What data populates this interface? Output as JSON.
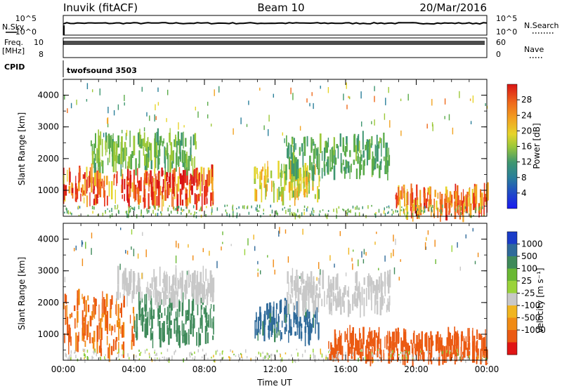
{
  "header": {
    "station": "Inuvik (fitACF)",
    "beam": "Beam 10",
    "date": "20/Mar/2016"
  },
  "chart_data": [
    {
      "type": "line",
      "panel": "nsky-nsearch",
      "left_label": "N.Sky",
      "right_label": "N.Search",
      "left_ticks": [
        "10^5",
        "10^0"
      ],
      "right_ticks": [
        "10^5",
        "10^0"
      ],
      "yscale": "log",
      "ylim": [
        1,
        100000
      ],
      "series_value_approx": 1000
    },
    {
      "type": "line",
      "panel": "freq-nave",
      "left_label": "Freq.",
      "left_unit": "[MHz]",
      "left_ticks": [
        "10",
        "8"
      ],
      "right_label": "Nave",
      "right_ticks": [
        "60",
        "0"
      ],
      "ylim_left": [
        8,
        12
      ],
      "series_value_approx": 11
    },
    {
      "type": "table",
      "panel": "cpid",
      "label": "CPID",
      "value": "twofsound 3503"
    },
    {
      "type": "heatmap",
      "panel": "power",
      "ylabel": "Slant Range [km]",
      "ylim": [
        180,
        4500
      ],
      "yticks": [
        "1000",
        "2000",
        "3000",
        "4000"
      ],
      "colorbar_label": "Power [dB]",
      "colorbar_range": [
        0,
        32
      ],
      "colorbar_ticks": [
        "4",
        "8",
        "12",
        "16",
        "20",
        "24",
        "28"
      ],
      "colorbar_colors": [
        "#1a1af0",
        "#1f48c8",
        "#2a7f9a",
        "#3e9670",
        "#5aab4a",
        "#9cc839",
        "#e6d42a",
        "#f2a321",
        "#ef6a1b",
        "#e8341a",
        "#d91414"
      ],
      "echo_regions": [
        {
          "t_start": 0.0,
          "t_end": 8.5,
          "r_start": 600,
          "r_end": 1600,
          "level": 26
        },
        {
          "t_start": 1.5,
          "t_end": 7.5,
          "r_start": 1700,
          "r_end": 2700,
          "level": 14
        },
        {
          "t_start": 10.8,
          "t_end": 14.5,
          "r_start": 800,
          "r_end": 1700,
          "level": 18
        },
        {
          "t_start": 12.5,
          "t_end": 18.5,
          "r_start": 1500,
          "r_end": 2600,
          "level": 12
        },
        {
          "t_start": 18.8,
          "t_end": 24.0,
          "r_start": 250,
          "r_end": 1000,
          "level": 24
        }
      ]
    },
    {
      "type": "heatmap",
      "panel": "velocity",
      "ylabel": "Slant Range [km]",
      "ylim": [
        180,
        4500
      ],
      "yticks": [
        "1000",
        "2000",
        "3000",
        "4000"
      ],
      "xlabel": "Time UT",
      "xticks": [
        "00:00",
        "04:00",
        "08:00",
        "12:00",
        "16:00",
        "20:00",
        "00:00"
      ],
      "xlim": [
        0,
        24
      ],
      "colorbar_label": "Velocity [m s⁻¹]",
      "colorbar_ticks": [
        "1000",
        "500",
        "100",
        "25",
        "-25",
        "-100",
        "-500",
        "-1000"
      ],
      "colorbar_colors": [
        "#1a3cc8",
        "#2f6a9a",
        "#3f8a5a",
        "#6ab833",
        "#9ad33a",
        "#c8c8c8",
        "#f0b520",
        "#f08a14",
        "#eb5a12",
        "#e01414"
      ],
      "echo_regions": [
        {
          "t_start": 0.0,
          "t_end": 4.0,
          "r_start": 400,
          "r_end": 2200,
          "level": -300
        },
        {
          "t_start": 4.0,
          "t_end": 8.5,
          "r_start": 800,
          "r_end": 2100,
          "level": 80
        },
        {
          "t_start": 3.0,
          "t_end": 8.5,
          "r_start": 2100,
          "r_end": 2900,
          "level": 0
        },
        {
          "t_start": 10.8,
          "t_end": 14.5,
          "r_start": 900,
          "r_end": 1900,
          "level": 120
        },
        {
          "t_start": 12.5,
          "t_end": 18.5,
          "r_start": 1800,
          "r_end": 2800,
          "level": 0
        },
        {
          "t_start": 15.0,
          "t_end": 24.0,
          "r_start": 250,
          "r_end": 1000,
          "level": -400
        }
      ]
    }
  ]
}
